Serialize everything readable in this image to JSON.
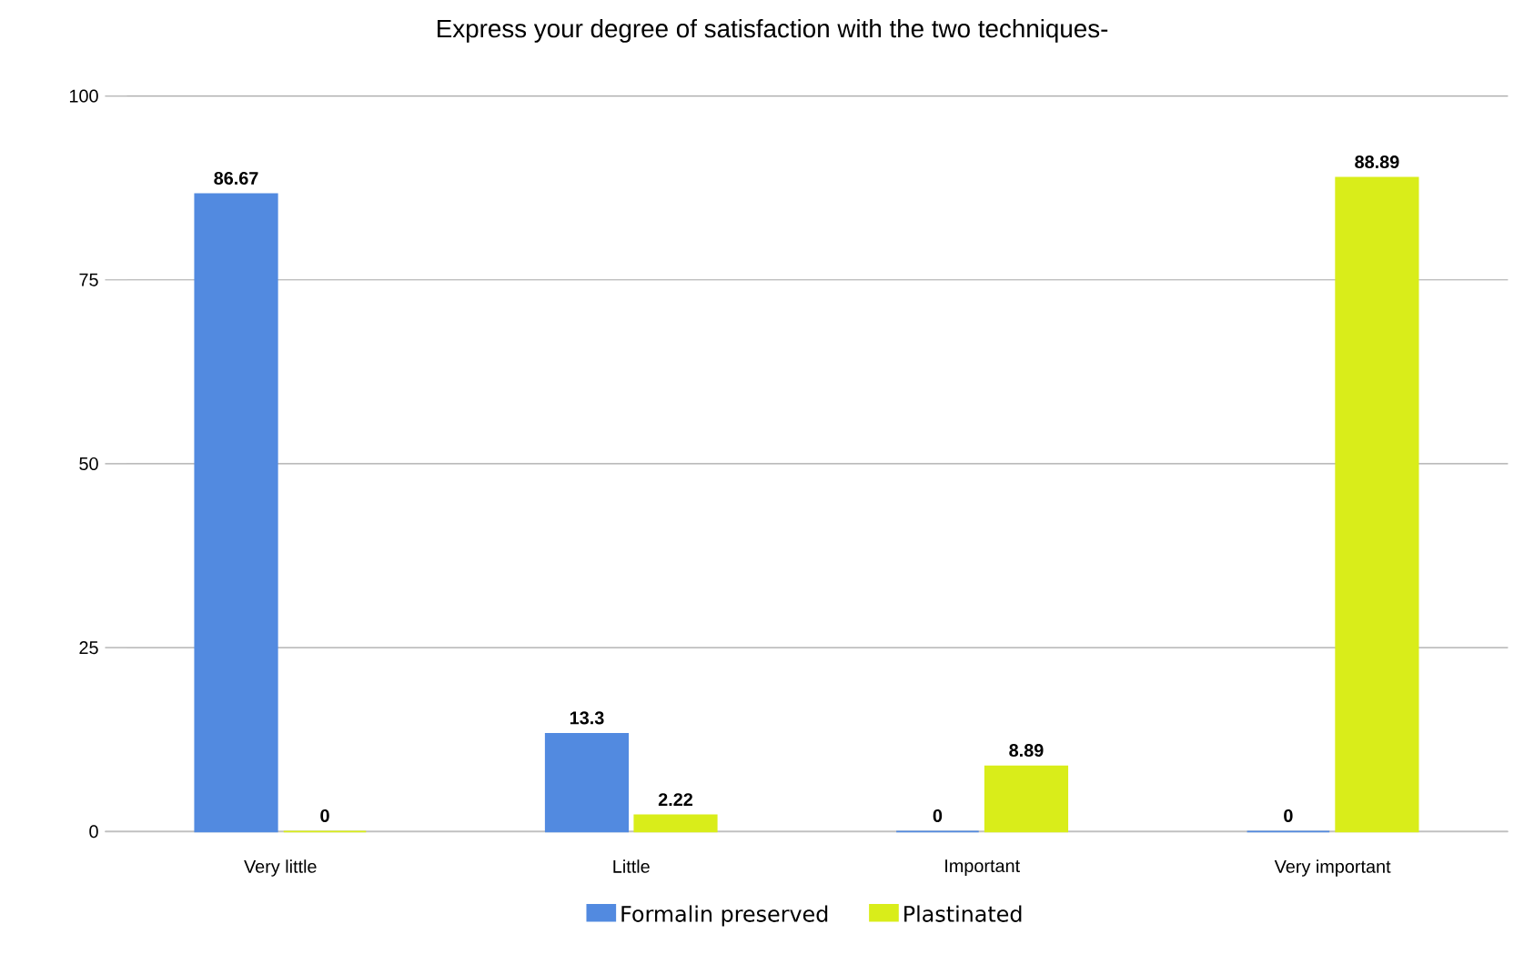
{
  "chart_data": {
    "type": "bar",
    "title": "Express your degree of satisfaction with the two techniques-",
    "categories": [
      "Very little",
      "Little",
      "Important",
      "Very important"
    ],
    "series": [
      {
        "name": "Formalin preserved",
        "color": "#528ae0",
        "values": [
          86.67,
          13.3,
          0,
          0
        ]
      },
      {
        "name": "Plastinated",
        "color": "#d9ed1a",
        "values": [
          0,
          2.22,
          8.89,
          88.89
        ]
      }
    ],
    "ylim": [
      0,
      100
    ],
    "yticks": [
      0,
      25,
      50,
      75,
      100
    ],
    "grid": "y",
    "legend": "bottom",
    "data_labels": true
  }
}
